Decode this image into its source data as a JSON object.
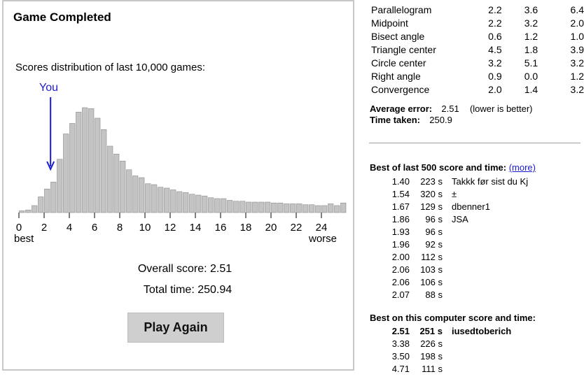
{
  "panel": {
    "title": "Game Completed",
    "distribution_label": "Scores distribution of last 10,000 games:",
    "you_label": "You",
    "overall_score": "Overall score: 2.51",
    "total_time": "Total time: 250.94",
    "play_again": "Play Again"
  },
  "chart_data": {
    "type": "bar",
    "x_ticks": [
      "0",
      "2",
      "4",
      "6",
      "8",
      "10",
      "12",
      "14",
      "16",
      "18",
      "20",
      "22",
      "24"
    ],
    "x_tick_values": [
      0,
      2,
      4,
      6,
      8,
      10,
      12,
      14,
      16,
      18,
      20,
      22,
      24
    ],
    "x_left_label": "best",
    "x_right_label": "worse",
    "bin_width": 0.5,
    "x_start": 0,
    "values": [
      2,
      3,
      8,
      18,
      27,
      35,
      61,
      90,
      102,
      115,
      120,
      119,
      108,
      95,
      76,
      67,
      59,
      49,
      42,
      40,
      33,
      32,
      29,
      28,
      26,
      24,
      23,
      21,
      20,
      19,
      17,
      16,
      16,
      14,
      13,
      13,
      12,
      12,
      12,
      12,
      11,
      11,
      10,
      10,
      10,
      9,
      9,
      8,
      8,
      10,
      8,
      11
    ],
    "you_marker": 2.51,
    "color": "#c4c4c4"
  },
  "components": {
    "rows": [
      {
        "name": "Parallelogram",
        "a": "2.2",
        "b": "3.6",
        "c": "6.4"
      },
      {
        "name": "Midpoint",
        "a": "2.2",
        "b": "3.2",
        "c": "2.0"
      },
      {
        "name": "Bisect angle",
        "a": "0.6",
        "b": "1.2",
        "c": "1.0"
      },
      {
        "name": "Triangle center",
        "a": "4.5",
        "b": "1.8",
        "c": "3.9"
      },
      {
        "name": "Circle center",
        "a": "3.2",
        "b": "5.1",
        "c": "3.2"
      },
      {
        "name": "Right angle",
        "a": "0.9",
        "b": "0.0",
        "c": "1.2"
      },
      {
        "name": "Convergence",
        "a": "2.0",
        "b": "1.4",
        "c": "3.2"
      }
    ]
  },
  "stats": {
    "avg_label": "Average error:",
    "avg_value": "2.51",
    "avg_note": "(lower is better)",
    "time_label": "Time taken:",
    "time_value": "250.9"
  },
  "best500": {
    "title": "Best of last 500 score and time:",
    "more": "(more)",
    "rows": [
      {
        "score": "1.40",
        "time": "223 s",
        "name": "Takkk før sist du Kj"
      },
      {
        "score": "1.54",
        "time": "320 s",
        "name": "±"
      },
      {
        "score": "1.67",
        "time": "129 s",
        "name": "dbenner1"
      },
      {
        "score": "1.86",
        "time": "96 s",
        "name": "JSA"
      },
      {
        "score": "1.93",
        "time": "96 s",
        "name": ""
      },
      {
        "score": "1.96",
        "time": "92 s",
        "name": ""
      },
      {
        "score": "2.00",
        "time": "112 s",
        "name": ""
      },
      {
        "score": "2.06",
        "time": "103 s",
        "name": ""
      },
      {
        "score": "2.06",
        "time": "106 s",
        "name": ""
      },
      {
        "score": "2.07",
        "time": "88 s",
        "name": ""
      }
    ]
  },
  "best_computer": {
    "title": "Best on this computer score and time:",
    "rows": [
      {
        "score": "2.51",
        "time": "251 s",
        "name": "iusedtoberich",
        "highlight": true
      },
      {
        "score": "3.38",
        "time": "226 s",
        "name": ""
      },
      {
        "score": "3.50",
        "time": "198 s",
        "name": ""
      },
      {
        "score": "4.71",
        "time": "111 s",
        "name": ""
      }
    ]
  }
}
